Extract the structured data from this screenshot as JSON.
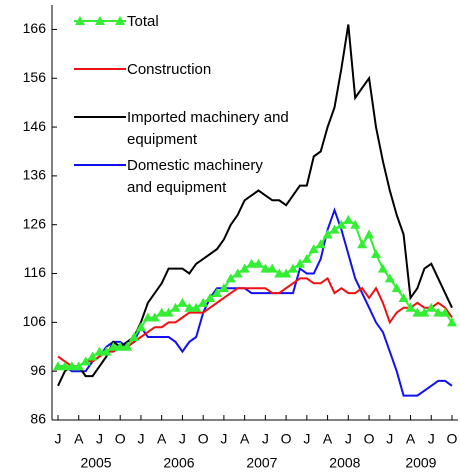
{
  "chart_data": {
    "type": "line",
    "categories": [
      "J",
      null,
      null,
      "A",
      null,
      null,
      "J",
      null,
      null,
      "O",
      null,
      null,
      "J",
      null,
      null,
      "A",
      null,
      null,
      "J",
      null,
      null,
      "O",
      null,
      null,
      "J",
      null,
      null,
      "A",
      null,
      null,
      "J",
      null,
      null,
      "O",
      null,
      null,
      "J",
      null,
      null,
      "A",
      null,
      null,
      "J",
      null,
      null,
      "O",
      null,
      null,
      "J",
      null,
      null,
      "A",
      null,
      null,
      "J",
      null,
      null,
      "O"
    ],
    "year_labels": [
      "2005",
      "2006",
      "2007",
      "2008",
      "2009"
    ],
    "ylim": [
      86,
      171
    ],
    "yticks": [
      86,
      96,
      106,
      116,
      126,
      136,
      146,
      156,
      166
    ],
    "series": [
      {
        "name": "Total",
        "color": "#33ee33",
        "marker": "triangle",
        "values": [
          97,
          97,
          97,
          97,
          98,
          99,
          100,
          100,
          101,
          101,
          101,
          103,
          105,
          107,
          107,
          108,
          108,
          109,
          110,
          109,
          109,
          110,
          111,
          112,
          113,
          115,
          116,
          117,
          118,
          118,
          117,
          117,
          116,
          116,
          117,
          118,
          119,
          121,
          122,
          124,
          125,
          126,
          127,
          126,
          122,
          124,
          120,
          117,
          115,
          113,
          111,
          109,
          108,
          108,
          109,
          108,
          108,
          106
        ]
      },
      {
        "name": "Construction",
        "color": "#ee1111",
        "values": [
          99,
          98,
          97,
          97,
          98,
          98,
          99,
          100,
          100,
          101,
          101,
          102,
          103,
          104,
          105,
          105,
          106,
          106,
          107,
          108,
          108,
          108,
          109,
          110,
          111,
          112,
          113,
          113,
          113,
          113,
          113,
          112,
          112,
          113,
          114,
          115,
          115,
          114,
          114,
          115,
          112,
          113,
          112,
          112,
          113,
          111,
          113,
          110,
          106,
          108,
          109,
          109,
          110,
          109,
          109,
          110,
          109,
          107
        ]
      },
      {
        "name": "Imported machinery and equipment",
        "color": "#000000",
        "values": [
          93,
          96,
          97,
          97,
          95,
          95,
          97,
          99,
          102,
          101,
          102,
          103,
          106,
          110,
          112,
          114,
          117,
          117,
          117,
          116,
          118,
          119,
          120,
          121,
          123,
          126,
          128,
          131,
          132,
          133,
          132,
          131,
          131,
          130,
          132,
          134,
          134,
          140,
          141,
          146,
          150,
          158,
          167,
          152,
          154,
          156,
          146,
          139,
          133,
          128,
          124,
          111,
          113,
          117,
          118,
          115,
          112,
          109
        ]
      },
      {
        "name": "Domestic machinery and equipment",
        "color": "#1111ee",
        "values": [
          97,
          97,
          96,
          96,
          96,
          98,
          99,
          101,
          102,
          102,
          101,
          102,
          105,
          103,
          103,
          103,
          103,
          102,
          100,
          102,
          103,
          108,
          111,
          113,
          113,
          113,
          113,
          113,
          112,
          112,
          112,
          112,
          112,
          112,
          112,
          117,
          116,
          116,
          119,
          125,
          129,
          125,
          120,
          115,
          112,
          109,
          106,
          104,
          100,
          96,
          91,
          91,
          91,
          92,
          93,
          94,
          94,
          93
        ]
      }
    ]
  }
}
